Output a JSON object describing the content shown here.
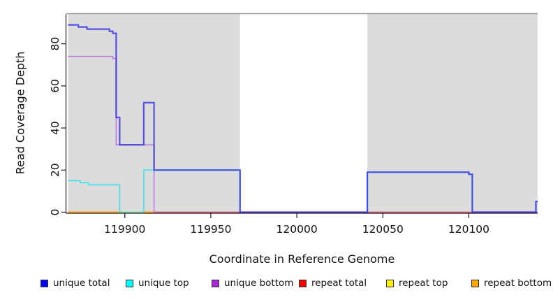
{
  "chart_data": {
    "type": "line",
    "title": "",
    "xlabel": "Coordinate in Reference Genome",
    "ylabel": "Read Coverage Depth",
    "xlim": [
      119866,
      120140
    ],
    "ylim": [
      0,
      94
    ],
    "xticks": [
      119900,
      119950,
      120000,
      120050,
      120100
    ],
    "yticks": [
      0,
      20,
      40,
      60,
      80
    ],
    "grid": false,
    "background": "#ffffff",
    "shaded_regions": {
      "color": "#dcdcdc",
      "regions": [
        {
          "from": 119867,
          "to": 119967
        },
        {
          "from": 120041,
          "to": 120140
        }
      ]
    },
    "series": [
      {
        "name": "repeat total",
        "color": "#e0405c",
        "width": 1.6,
        "opacity": 1,
        "segments": [
          [
            [
              119917,
              0
            ],
            [
              120140,
              0
            ]
          ]
        ]
      },
      {
        "name": "repeat top",
        "color": "#6fcf97",
        "width": 1.6,
        "opacity": 1,
        "segments": [
          [
            [
              119897,
              0
            ],
            [
              119911,
              0
            ]
          ]
        ]
      },
      {
        "name": "repeat bottom",
        "color": "#ff9f1e",
        "width": 2,
        "opacity": 1,
        "segments": [
          [
            [
              119867,
              0
            ],
            [
              119897,
              0
            ]
          ],
          [
            [
              119911,
              0
            ],
            [
              119917,
              0
            ]
          ]
        ]
      },
      {
        "name": "unique bottom",
        "color": "#bd7ae0",
        "width": 1.6,
        "opacity": 1,
        "segments": [
          [
            [
              119867,
              74
            ],
            [
              119893,
              74
            ],
            [
              119893,
              73
            ],
            [
              119895,
              73
            ],
            [
              119895,
              32
            ],
            [
              119917,
              32
            ],
            [
              119917,
              0
            ]
          ]
        ]
      },
      {
        "name": "unique top",
        "color": "#3fe0e8",
        "width": 1.6,
        "opacity": 1,
        "segments": [
          [
            [
              119867,
              15
            ],
            [
              119874,
              15
            ],
            [
              119874,
              14
            ],
            [
              119879,
              14
            ],
            [
              119879,
              13
            ],
            [
              119897,
              13
            ],
            [
              119897,
              0
            ]
          ],
          [
            [
              119911,
              0
            ],
            [
              119911,
              20
            ],
            [
              119967,
              20
            ],
            [
              119967,
              0
            ]
          ],
          [
            [
              120041,
              0
            ],
            [
              120041,
              19
            ],
            [
              120100,
              19
            ],
            [
              120100,
              18
            ],
            [
              120102,
              18
            ],
            [
              120102,
              0
            ]
          ],
          [
            [
              120139,
              0
            ],
            [
              120139,
              5
            ],
            [
              120140,
              5
            ]
          ]
        ]
      },
      {
        "name": "unique total",
        "color": "#2d2ae0",
        "width": 2.2,
        "opacity": 0.78,
        "segments": [
          [
            [
              119867,
              89
            ],
            [
              119873,
              89
            ],
            [
              119873,
              88
            ],
            [
              119878,
              88
            ],
            [
              119878,
              87
            ],
            [
              119891,
              87
            ],
            [
              119891,
              86
            ],
            [
              119893,
              86
            ],
            [
              119893,
              85
            ],
            [
              119895,
              85
            ],
            [
              119895,
              45
            ],
            [
              119897,
              45
            ],
            [
              119897,
              32
            ],
            [
              119911,
              32
            ],
            [
              119911,
              52
            ],
            [
              119917,
              52
            ],
            [
              119917,
              20
            ],
            [
              119967,
              20
            ],
            [
              119967,
              0
            ],
            [
              120041,
              0
            ],
            [
              120041,
              19
            ],
            [
              120100,
              19
            ],
            [
              120100,
              18
            ],
            [
              120102,
              18
            ],
            [
              120102,
              0
            ],
            [
              120139,
              0
            ],
            [
              120139,
              5
            ],
            [
              120140,
              5
            ]
          ]
        ]
      }
    ],
    "legend": [
      {
        "label": "unique total",
        "color": "#0202f0"
      },
      {
        "label": "unique top",
        "color": "#00ffff"
      },
      {
        "label": "unique bottom",
        "color": "#a428d4"
      },
      {
        "label": "repeat total",
        "color": "#f00000"
      },
      {
        "label": "repeat top",
        "color": "#fff500"
      },
      {
        "label": "repeat bottom",
        "color": "#ffa500"
      }
    ],
    "legend_position": "bottom"
  }
}
